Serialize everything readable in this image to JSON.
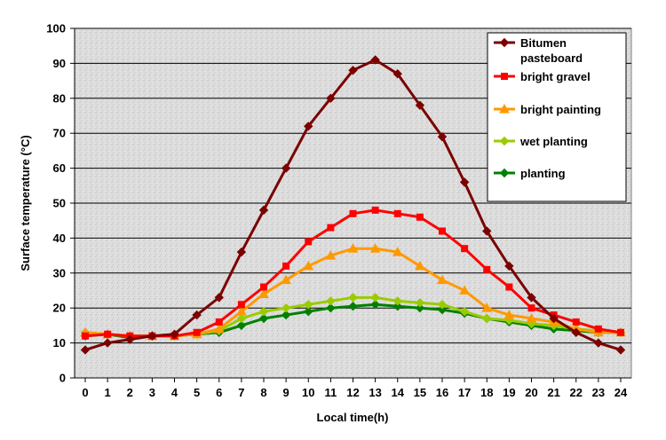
{
  "chart_data": {
    "type": "line",
    "title": "",
    "xlabel": "Local time(h)",
    "ylabel": "Surface temperature (°C)",
    "xlim": [
      0,
      24
    ],
    "ylim": [
      0,
      100
    ],
    "yticks": [
      0,
      10,
      20,
      30,
      40,
      50,
      60,
      70,
      80,
      90,
      100
    ],
    "x": [
      0,
      1,
      2,
      3,
      4,
      5,
      6,
      7,
      8,
      9,
      10,
      11,
      12,
      13,
      14,
      15,
      16,
      17,
      18,
      19,
      20,
      21,
      22,
      23,
      24
    ],
    "grid": true,
    "legend_position": "top-right",
    "series": [
      {
        "name": "Bitumen pasteboard",
        "legend_lines": [
          "Bitumen",
          "pasteboard"
        ],
        "color": "#7b0000",
        "marker": "diamond",
        "values": [
          8,
          10,
          11,
          12,
          12.5,
          18,
          23,
          36,
          48,
          60,
          72,
          80,
          88,
          91,
          87,
          78,
          69,
          56,
          42,
          32,
          23,
          17,
          13,
          10,
          8
        ]
      },
      {
        "name": "bright  gravel",
        "legend_lines": [
          "bright  gravel"
        ],
        "color": "#ff0000",
        "marker": "square",
        "values": [
          12,
          12.5,
          12,
          12,
          12,
          13,
          16,
          21,
          26,
          32,
          39,
          43,
          47,
          48,
          47,
          46,
          42,
          37,
          31,
          26,
          20,
          18,
          16,
          14,
          13
        ]
      },
      {
        "name": "bright  painting",
        "legend_lines": [
          "bright  painting"
        ],
        "color": "#ff9900",
        "marker": "triangle",
        "values": [
          13,
          12.5,
          12,
          12,
          12,
          12.5,
          14,
          19,
          24,
          28,
          32,
          35,
          37,
          37,
          36,
          32,
          28,
          25,
          20,
          18,
          17,
          16,
          14,
          13,
          13
        ]
      },
      {
        "name": "wet planting",
        "legend_lines": [
          "wet planting"
        ],
        "color": "#99cc00",
        "marker": "diamond",
        "values": [
          13,
          12.5,
          12,
          12,
          12,
          12.5,
          13.5,
          17,
          19,
          20,
          21,
          22,
          23,
          23,
          22,
          21.5,
          21,
          19,
          17,
          16.5,
          15.5,
          15,
          14,
          13.5,
          13
        ]
      },
      {
        "name": "planting",
        "legend_lines": [
          "planting"
        ],
        "color": "#008000",
        "marker": "diamond",
        "values": [
          12,
          12.5,
          11.5,
          12,
          12,
          12.5,
          13,
          15,
          17,
          18,
          19,
          20,
          20.5,
          21,
          20.5,
          20,
          19.5,
          18.5,
          17,
          16,
          15,
          14,
          13.5,
          13,
          13
        ]
      }
    ]
  }
}
